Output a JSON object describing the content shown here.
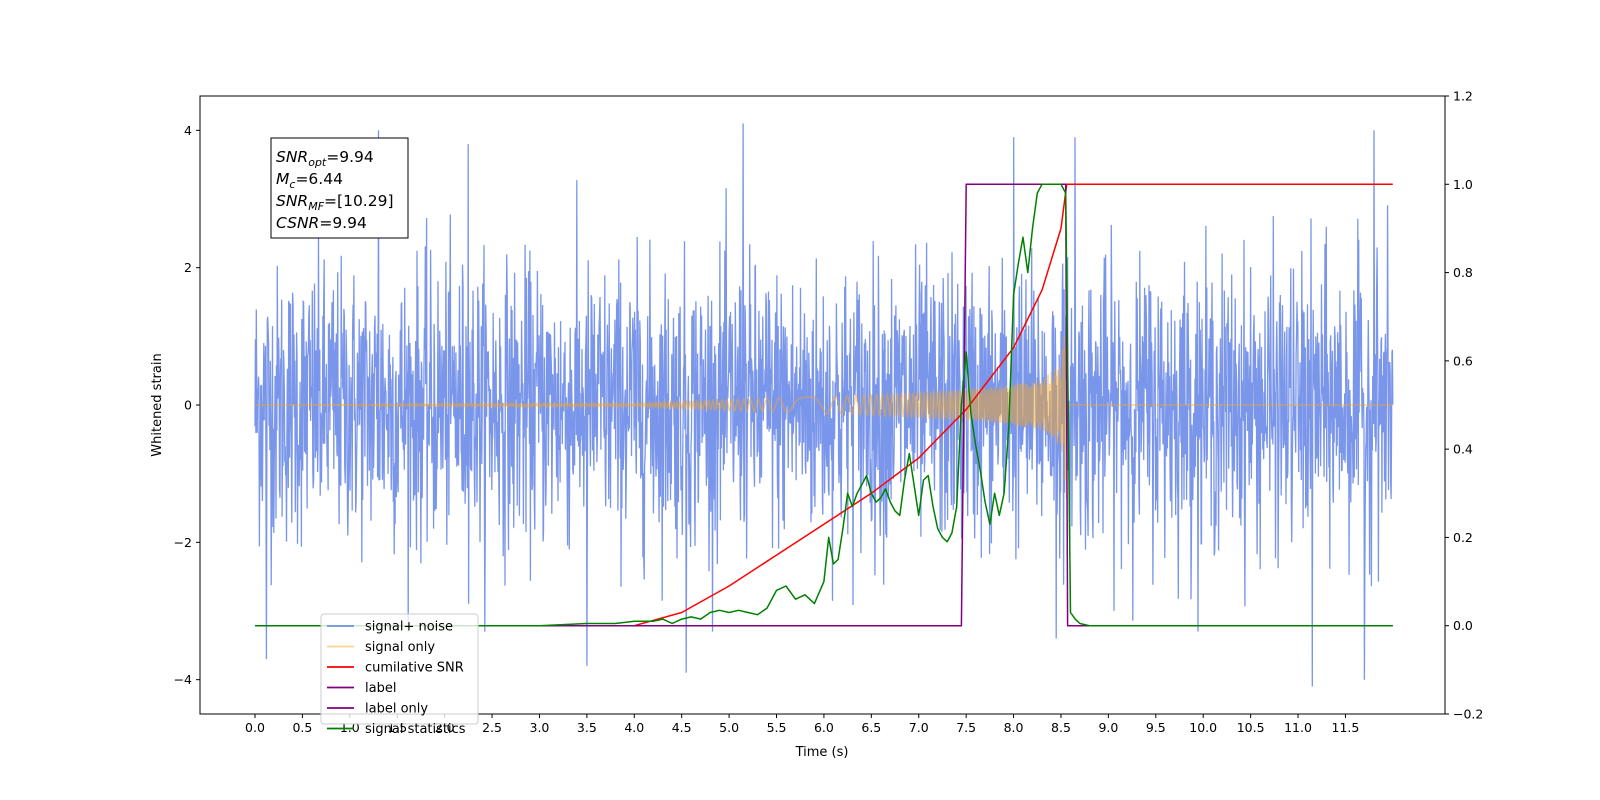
{
  "chart_data": {
    "type": "line",
    "title": "",
    "xlabel": "Time (s)",
    "ylabel_left": "Whitened strain",
    "ylabel_right": "",
    "xlim": [
      -0.58,
      12.55
    ],
    "ylim_left": [
      -4.5,
      4.5
    ],
    "ylim_right": [
      -0.2,
      1.2
    ],
    "x_ticks": [
      0.0,
      0.5,
      1.0,
      1.5,
      2.0,
      2.5,
      3.0,
      3.5,
      4.0,
      4.5,
      5.0,
      5.5,
      6.0,
      6.5,
      7.0,
      7.5,
      8.0,
      8.5,
      9.0,
      9.5,
      10.0,
      10.5,
      11.0,
      11.5
    ],
    "x_tick_labels": [
      "0.0",
      "0.5",
      "1.0",
      "1.5",
      "2.0",
      "2.5",
      "3.0",
      "3.5",
      "4.0",
      "4.5",
      "5.0",
      "5.5",
      "6.0",
      "6.5",
      "7.0",
      "7.5",
      "8.0",
      "8.5",
      "9.0",
      "9.5",
      "10.0",
      "10.5",
      "11.0",
      "11.5"
    ],
    "y_left_ticks": [
      -4,
      -2,
      0,
      2,
      4
    ],
    "y_left_tick_labels": [
      "−4",
      "−2",
      "0",
      "2",
      "4"
    ],
    "y_right_ticks": [
      -0.2,
      0.0,
      0.2,
      0.4,
      0.6,
      0.8,
      1.0,
      1.2
    ],
    "y_right_tick_labels": [
      "−0.2",
      "0.0",
      "0.2",
      "0.4",
      "0.6",
      "0.8",
      "1.0",
      "1.2"
    ],
    "grid": false,
    "legend_position": "lower-left",
    "annotation": {
      "lines": [
        {
          "main": "SNR",
          "sub": "opt",
          "rest": "=9.94"
        },
        {
          "main": "M",
          "sub": "c",
          "rest": "=6.44"
        },
        {
          "main": "SNR",
          "sub": "MF",
          "rest": "=[10.29]"
        },
        {
          "main": "CSNR",
          "sub": "",
          "rest": "=9.94"
        }
      ]
    },
    "series": [
      {
        "name": "signal+ noise",
        "axis": "left",
        "color": "#4169e1",
        "alpha": 0.7,
        "kind": "noise",
        "x_range": [
          0.0,
          12.0
        ],
        "amplitude_sd": 1.0,
        "peaks": [
          {
            "x": 0.12,
            "y": -3.7
          },
          {
            "x": 1.3,
            "y": 4.0
          },
          {
            "x": 2.25,
            "y": 3.8
          },
          {
            "x": 3.5,
            "y": -3.8
          },
          {
            "x": 4.55,
            "y": -3.9
          },
          {
            "x": 5.15,
            "y": 4.1
          },
          {
            "x": 8.0,
            "y": 3.9
          },
          {
            "x": 8.45,
            "y": -3.4
          },
          {
            "x": 8.65,
            "y": 3.9
          },
          {
            "x": 11.15,
            "y": -4.1
          },
          {
            "x": 11.7,
            "y": -4.0
          },
          {
            "x": 11.8,
            "y": 4.0
          }
        ]
      },
      {
        "name": "signal only",
        "axis": "left",
        "color": "#f5a623",
        "alpha": 0.5,
        "kind": "chirp",
        "x_range": [
          0.0,
          12.0
        ],
        "envelope": {
          "x": [
            0.0,
            4.0,
            5.0,
            6.0,
            6.5,
            7.0,
            7.5,
            8.0,
            8.3,
            8.5,
            8.56
          ],
          "y": [
            0.0,
            0.02,
            0.08,
            0.12,
            0.15,
            0.19,
            0.23,
            0.29,
            0.37,
            0.6,
            1.4
          ]
        },
        "end_x": 8.56
      },
      {
        "name": "cumilative SNR",
        "axis": "right",
        "color": "#ff0000",
        "x": [
          4.0,
          4.5,
          5.0,
          5.5,
          6.0,
          6.5,
          7.0,
          7.5,
          8.0,
          8.3,
          8.5,
          8.56,
          8.57,
          12.0
        ],
        "y": [
          0.0,
          0.03,
          0.09,
          0.16,
          0.23,
          0.3,
          0.38,
          0.49,
          0.63,
          0.76,
          0.9,
          1.0,
          1.0,
          1.0
        ]
      },
      {
        "name": "label",
        "axis": "right",
        "color": "#800080",
        "x": [
          0.0,
          7.45,
          7.5,
          8.55,
          8.57,
          12.0
        ],
        "y": [
          0.0,
          0.0,
          1.0,
          1.0,
          0.0,
          0.0
        ]
      },
      {
        "name": "label only",
        "axis": "right",
        "color": "#800080",
        "hidden": true,
        "x": [],
        "y": []
      },
      {
        "name": "signal statistics",
        "axis": "right",
        "color": "#008000",
        "x": [
          0.0,
          3.0,
          3.5,
          3.8,
          4.0,
          4.1,
          4.2,
          4.3,
          4.4,
          4.5,
          4.6,
          4.7,
          4.8,
          4.9,
          5.0,
          5.1,
          5.2,
          5.3,
          5.4,
          5.5,
          5.6,
          5.7,
          5.8,
          5.9,
          6.0,
          6.05,
          6.1,
          6.15,
          6.2,
          6.25,
          6.3,
          6.35,
          6.4,
          6.45,
          6.5,
          6.55,
          6.6,
          6.65,
          6.7,
          6.75,
          6.8,
          6.85,
          6.9,
          6.95,
          7.0,
          7.05,
          7.1,
          7.15,
          7.2,
          7.25,
          7.3,
          7.35,
          7.4,
          7.45,
          7.5,
          7.55,
          7.6,
          7.65,
          7.7,
          7.75,
          7.8,
          7.85,
          7.9,
          7.95,
          8.0,
          8.05,
          8.1,
          8.15,
          8.2,
          8.25,
          8.3,
          8.4,
          8.5,
          8.55,
          8.6,
          8.65,
          8.7,
          8.8,
          9.0,
          12.0
        ],
        "y": [
          0.0,
          0.0,
          0.005,
          0.005,
          0.01,
          0.01,
          0.01,
          0.015,
          0.005,
          0.015,
          0.02,
          0.015,
          0.03,
          0.035,
          0.03,
          0.035,
          0.03,
          0.025,
          0.04,
          0.08,
          0.09,
          0.06,
          0.07,
          0.05,
          0.1,
          0.2,
          0.14,
          0.15,
          0.22,
          0.3,
          0.27,
          0.3,
          0.32,
          0.34,
          0.3,
          0.28,
          0.29,
          0.31,
          0.28,
          0.26,
          0.25,
          0.33,
          0.39,
          0.32,
          0.25,
          0.33,
          0.34,
          0.27,
          0.22,
          0.2,
          0.19,
          0.21,
          0.27,
          0.5,
          0.62,
          0.48,
          0.41,
          0.35,
          0.28,
          0.23,
          0.3,
          0.25,
          0.3,
          0.45,
          0.75,
          0.82,
          0.88,
          0.8,
          0.9,
          0.98,
          1.0,
          1.0,
          1.0,
          0.98,
          0.03,
          0.015,
          0.005,
          0.0,
          0.0,
          0.0
        ]
      }
    ]
  }
}
